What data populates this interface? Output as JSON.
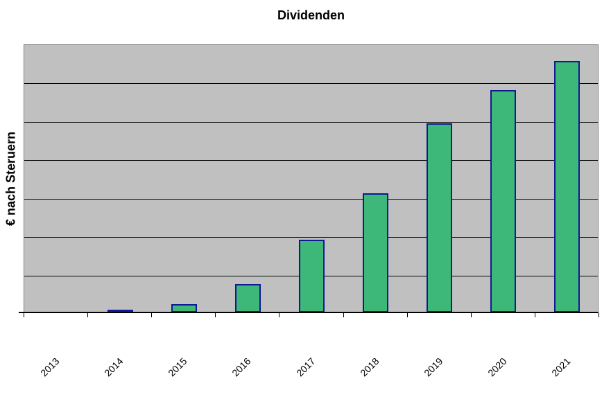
{
  "chart_data": {
    "type": "bar",
    "title": "Dividenden",
    "xlabel": "",
    "ylabel": "€ nach Steruern",
    "categories": [
      "2013",
      "2014",
      "2015",
      "2016",
      "2017",
      "2018",
      "2019",
      "2020",
      "2021"
    ],
    "series": [
      {
        "name": "Dividenden",
        "values": [
          0,
          0.08,
          0.21,
          0.74,
          1.9,
          3.11,
          4.93,
          5.79,
          6.55
        ]
      }
    ],
    "value_note": "no y-axis tick labels shown; values estimated in gridline units",
    "ylim": [
      0,
      7
    ],
    "gridline_interval": 1,
    "grid": true,
    "legend": false,
    "x_label_rotation_deg": 45,
    "colors": {
      "bar_fill": "#3DB878",
      "bar_border": "#101896",
      "plot_background": "#C0C0C0",
      "plot_border": "#808080",
      "gridline": "#000000",
      "axis_line": "#000000",
      "text": "#000000",
      "page_background": "#FFFFFF"
    }
  }
}
